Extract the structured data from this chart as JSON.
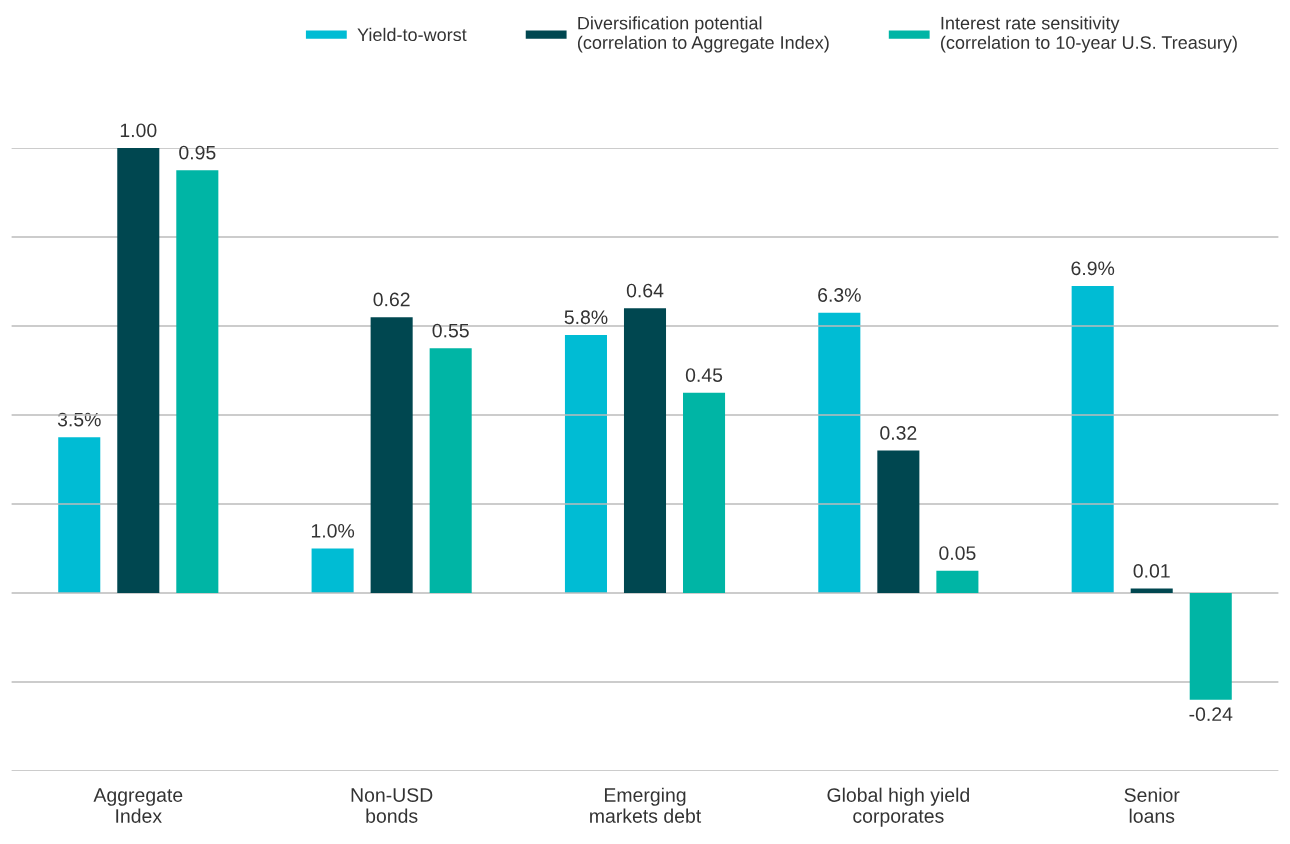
{
  "chart_data": {
    "type": "bar",
    "categories": [
      "Aggregate\nIndex",
      "Non-USD\nbonds",
      "Emerging\nmarkets debt",
      "Global high yield\ncorporates",
      "Senior\nloans"
    ],
    "series": [
      {
        "name": "Yield-to-worst",
        "color": "#00bcd4",
        "values": [
          3.5,
          1.0,
          5.8,
          6.3,
          6.9
        ],
        "axis": "y2",
        "value_labels": [
          "3.5%",
          "1.0%",
          "5.8%",
          "6.3%",
          "6.9%"
        ]
      },
      {
        "name": "Diversification potential\n(correlation to Aggregate Index)",
        "color": "#004750",
        "values": [
          1.0,
          0.62,
          0.64,
          0.32,
          0.01
        ],
        "value_labels": [
          "1.00",
          "0.62",
          "0.64",
          "0.32",
          "0.01"
        ]
      },
      {
        "name": "Interest rate sensitivity\n(correlation to 10-year U.S. Treasury)",
        "color": "#00b5a5",
        "values": [
          0.95,
          0.55,
          0.45,
          0.05,
          -0.24
        ],
        "value_labels": [
          "0.95",
          "0.55",
          "0.45",
          "0.05",
          "-0.24"
        ]
      }
    ],
    "ylim": [
      -0.4,
      1.0
    ],
    "yticks": [
      {
        "value": -0.4,
        "label": null
      },
      {
        "value": -0.2,
        "label": null
      },
      {
        "value": 0,
        "label": null
      },
      {
        "value": 0.2,
        "label": null
      },
      {
        "value": 0.4,
        "label": null
      },
      {
        "value": 0.6,
        "label": null
      },
      {
        "value": 0.8,
        "label": null
      },
      {
        "value": 1.0,
        "label": null
      }
    ],
    "y2lim": [
      -4,
      10
    ],
    "tick_labels": "x",
    "grid": "y",
    "legend": "top"
  }
}
